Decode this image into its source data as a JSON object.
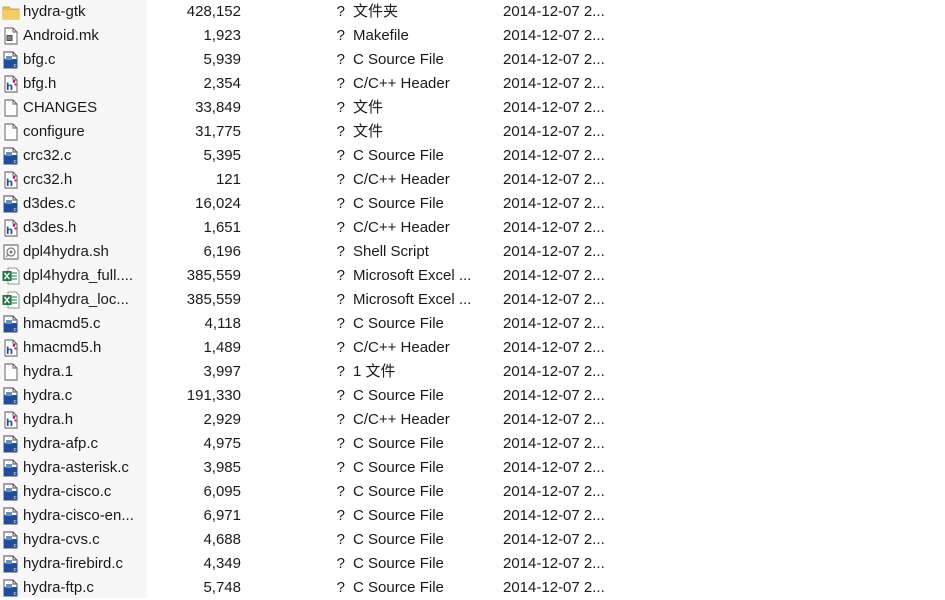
{
  "files": [
    {
      "name": "hydra-gtk",
      "size": "428,152",
      "attr": "?",
      "type": "文件夹",
      "date": "2014-12-07 2...",
      "icon": "folder-icon"
    },
    {
      "name": "Android.mk",
      "size": "1,923",
      "attr": "?",
      "type": "Makefile",
      "date": "2014-12-07 2...",
      "icon": "makefile-icon"
    },
    {
      "name": "bfg.c",
      "size": "5,939",
      "attr": "?",
      "type": "C Source File",
      "date": "2014-12-07 2...",
      "icon": "c-source-icon"
    },
    {
      "name": "bfg.h",
      "size": "2,354",
      "attr": "?",
      "type": "C/C++ Header",
      "date": "2014-12-07 2...",
      "icon": "c-header-icon"
    },
    {
      "name": "CHANGES",
      "size": "33,849",
      "attr": "?",
      "type": "文件",
      "date": "2014-12-07 2...",
      "icon": "file-icon"
    },
    {
      "name": "configure",
      "size": "31,775",
      "attr": "?",
      "type": "文件",
      "date": "2014-12-07 2...",
      "icon": "file-icon"
    },
    {
      "name": "crc32.c",
      "size": "5,395",
      "attr": "?",
      "type": "C Source File",
      "date": "2014-12-07 2...",
      "icon": "c-source-icon"
    },
    {
      "name": "crc32.h",
      "size": "121",
      "attr": "?",
      "type": "C/C++ Header",
      "date": "2014-12-07 2...",
      "icon": "c-header-icon"
    },
    {
      "name": "d3des.c",
      "size": "16,024",
      "attr": "?",
      "type": "C Source File",
      "date": "2014-12-07 2...",
      "icon": "c-source-icon"
    },
    {
      "name": "d3des.h",
      "size": "1,651",
      "attr": "?",
      "type": "C/C++ Header",
      "date": "2014-12-07 2...",
      "icon": "c-header-icon"
    },
    {
      "name": "dpl4hydra.sh",
      "size": "6,196",
      "attr": "?",
      "type": "Shell Script",
      "date": "2014-12-07 2...",
      "icon": "shell-script-icon"
    },
    {
      "name": "dpl4hydra_full....",
      "size": "385,559",
      "attr": "?",
      "type": "Microsoft Excel ...",
      "date": "2014-12-07 2...",
      "icon": "excel-icon"
    },
    {
      "name": "dpl4hydra_loc...",
      "size": "385,559",
      "attr": "?",
      "type": "Microsoft Excel ...",
      "date": "2014-12-07 2...",
      "icon": "excel-icon"
    },
    {
      "name": "hmacmd5.c",
      "size": "4,118",
      "attr": "?",
      "type": "C Source File",
      "date": "2014-12-07 2...",
      "icon": "c-source-icon"
    },
    {
      "name": "hmacmd5.h",
      "size": "1,489",
      "attr": "?",
      "type": "C/C++ Header",
      "date": "2014-12-07 2...",
      "icon": "c-header-icon"
    },
    {
      "name": "hydra.1",
      "size": "3,997",
      "attr": "?",
      "type": "1 文件",
      "date": "2014-12-07 2...",
      "icon": "file-icon"
    },
    {
      "name": "hydra.c",
      "size": "191,330",
      "attr": "?",
      "type": "C Source File",
      "date": "2014-12-07 2...",
      "icon": "c-source-icon"
    },
    {
      "name": "hydra.h",
      "size": "2,929",
      "attr": "?",
      "type": "C/C++ Header",
      "date": "2014-12-07 2...",
      "icon": "c-header-icon"
    },
    {
      "name": "hydra-afp.c",
      "size": "4,975",
      "attr": "?",
      "type": "C Source File",
      "date": "2014-12-07 2...",
      "icon": "c-source-icon"
    },
    {
      "name": "hydra-asterisk.c",
      "size": "3,985",
      "attr": "?",
      "type": "C Source File",
      "date": "2014-12-07 2...",
      "icon": "c-source-icon"
    },
    {
      "name": "hydra-cisco.c",
      "size": "6,095",
      "attr": "?",
      "type": "C Source File",
      "date": "2014-12-07 2...",
      "icon": "c-source-icon"
    },
    {
      "name": "hydra-cisco-en...",
      "size": "6,971",
      "attr": "?",
      "type": "C Source File",
      "date": "2014-12-07 2...",
      "icon": "c-source-icon"
    },
    {
      "name": "hydra-cvs.c",
      "size": "4,688",
      "attr": "?",
      "type": "C Source File",
      "date": "2014-12-07 2...",
      "icon": "c-source-icon"
    },
    {
      "name": "hydra-firebird.c",
      "size": "4,349",
      "attr": "?",
      "type": "C Source File",
      "date": "2014-12-07 2...",
      "icon": "c-source-icon"
    },
    {
      "name": "hydra-ftp.c",
      "size": "5,748",
      "attr": "?",
      "type": "C Source File",
      "date": "2014-12-07 2...",
      "icon": "c-source-icon"
    }
  ],
  "colors": {
    "folder": "#e8b84a",
    "c_source_blue": "#1f4e9c",
    "header_pink": "#c2187a",
    "excel_green": "#1d7a43",
    "name_column_bg": "#f7f7f7",
    "text": "#1a1a1a"
  }
}
